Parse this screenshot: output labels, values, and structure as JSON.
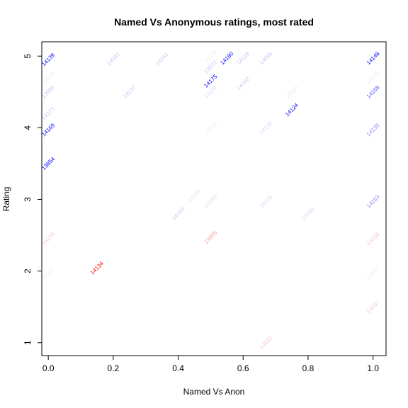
{
  "chart_data": {
    "type": "scatter",
    "title": "Named Vs Anonymous ratings, most rated",
    "xlabel": "Named Vs Anon",
    "ylabel": "Rating",
    "xlim": [
      -0.02,
      1.04
    ],
    "ylim": [
      0.82,
      5.2
    ],
    "x_ticks": [
      0.0,
      0.2,
      0.4,
      0.6,
      0.8,
      1.0
    ],
    "x_tick_labels": [
      "0.0",
      "0.2",
      "0.4",
      "0.6",
      "0.8",
      "1.0"
    ],
    "y_ticks": [
      1,
      2,
      3,
      4,
      5
    ],
    "y_tick_labels": [
      "1",
      "2",
      "3",
      "4",
      "5"
    ],
    "label_rotation_deg": -45,
    "points": [
      {
        "label": "14139",
        "x": 0.0,
        "y": 4.95,
        "color": "#0000ff"
      },
      {
        "label": "14133",
        "x": 0.0,
        "y": 4.7,
        "color": "#e6e6ff"
      },
      {
        "label": "13956",
        "x": 0.0,
        "y": 4.5,
        "color": "#c8c8f4"
      },
      {
        "label": "14173",
        "x": 0.0,
        "y": 4.2,
        "color": "#c8c8f4"
      },
      {
        "label": "14169",
        "x": 0.0,
        "y": 3.97,
        "color": "#0000ff"
      },
      {
        "label": "13854",
        "x": 0.0,
        "y": 3.5,
        "color": "#0000ff"
      },
      {
        "label": "14155",
        "x": 0.0,
        "y": 2.45,
        "color": "#f4c8c8"
      },
      {
        "label": "14177",
        "x": 0.0,
        "y": 1.97,
        "color": "#f0e8f0"
      },
      {
        "label": "14134",
        "x": 0.15,
        "y": 2.04,
        "color": "#ff0000"
      },
      {
        "label": "14093",
        "x": 0.2,
        "y": 4.96,
        "color": "#c8c8f4"
      },
      {
        "label": "14137",
        "x": 0.25,
        "y": 4.5,
        "color": "#c8c8f4"
      },
      {
        "label": "14161",
        "x": 0.35,
        "y": 4.96,
        "color": "#c8c8f4"
      },
      {
        "label": "14163",
        "x": 0.4,
        "y": 2.8,
        "color": "#c8c8f4"
      },
      {
        "label": "14179",
        "x": 0.45,
        "y": 3.05,
        "color": "#e0e0f4"
      },
      {
        "label": "14136",
        "x": 0.5,
        "y": 5.0,
        "color": "#ece6f6"
      },
      {
        "label": "13822",
        "x": 0.5,
        "y": 4.85,
        "color": "#c8c8f4"
      },
      {
        "label": "14175",
        "x": 0.5,
        "y": 4.65,
        "color": "#0000ff"
      },
      {
        "label": "14131",
        "x": 0.5,
        "y": 4.5,
        "color": "#d8d8f4"
      },
      {
        "label": "14113",
        "x": 0.5,
        "y": 4.0,
        "color": "#ece6f6"
      },
      {
        "label": "14150",
        "x": 0.5,
        "y": 2.97,
        "color": "#d8d8f4"
      },
      {
        "label": "13855",
        "x": 0.5,
        "y": 2.47,
        "color": "#f4a0a0"
      },
      {
        "label": "14180",
        "x": 0.55,
        "y": 4.97,
        "color": "#0000ff"
      },
      {
        "label": "14128",
        "x": 0.6,
        "y": 4.97,
        "color": "#c8c8f4"
      },
      {
        "label": "14162",
        "x": 0.6,
        "y": 4.62,
        "color": "#c8c8f4"
      },
      {
        "label": "14095",
        "x": 0.67,
        "y": 4.97,
        "color": "#c8c8f4"
      },
      {
        "label": "14130",
        "x": 0.67,
        "y": 4.0,
        "color": "#d8d8f4"
      },
      {
        "label": "14116",
        "x": 0.67,
        "y": 2.97,
        "color": "#d8d8f4"
      },
      {
        "label": "14002",
        "x": 0.67,
        "y": 1.0,
        "color": "#f4c8c8"
      },
      {
        "label": "14114",
        "x": 0.75,
        "y": 4.5,
        "color": "#ece6f6"
      },
      {
        "label": "14124",
        "x": 0.75,
        "y": 4.25,
        "color": "#0000ff"
      },
      {
        "label": "14099",
        "x": 0.8,
        "y": 2.8,
        "color": "#d8d8f4"
      },
      {
        "label": "14148",
        "x": 1.0,
        "y": 4.97,
        "color": "#0000ff"
      },
      {
        "label": "14125",
        "x": 1.0,
        "y": 4.7,
        "color": "#ece6f6"
      },
      {
        "label": "14168",
        "x": 1.0,
        "y": 4.5,
        "color": "#5a5aff"
      },
      {
        "label": "14135",
        "x": 1.0,
        "y": 3.97,
        "color": "#8c8cff"
      },
      {
        "label": "14163",
        "x": 1.0,
        "y": 2.97,
        "color": "#8c8cff"
      },
      {
        "label": "14156",
        "x": 1.0,
        "y": 2.45,
        "color": "#f4c8c8"
      },
      {
        "label": "14157",
        "x": 1.0,
        "y": 1.97,
        "color": "#f4e6f0"
      },
      {
        "label": "14157",
        "x": 1.0,
        "y": 1.5,
        "color": "#f4c8c8"
      }
    ]
  }
}
